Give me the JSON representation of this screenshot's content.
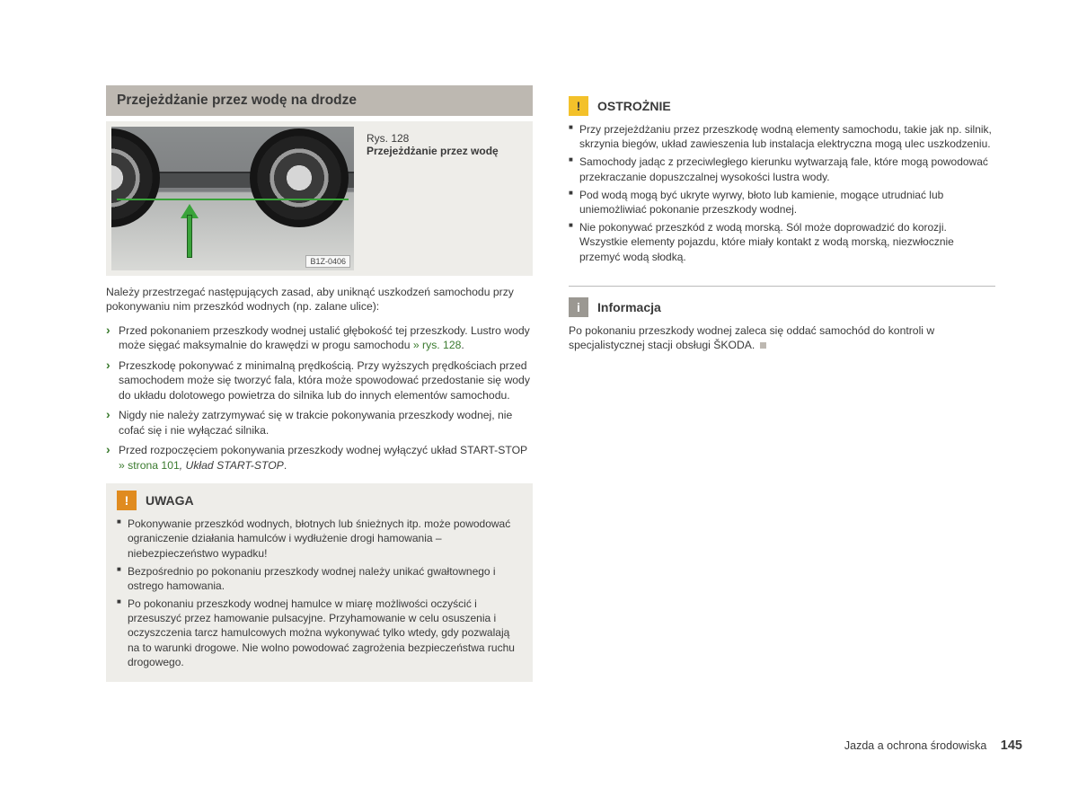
{
  "section": {
    "title": "Przejeżdżanie przez wodę na drodze"
  },
  "figure": {
    "number": "Rys. 128",
    "title": "Przejeżdżanie przez wodę",
    "image_code": "B1Z-0406",
    "colors": {
      "arrow": "#3aa33a",
      "waterline": "#3aa33a"
    }
  },
  "intro": "Należy przestrzegać następujących zasad, aby uniknąć uszkodzeń samochodu przy pokonywaniu nim przeszkód wodnych (np. zalane ulice):",
  "steps": [
    {
      "text": "Przed pokonaniem przeszkody wodnej ustalić głębokość tej przeszkody. Lustro wody może sięgać maksymalnie do krawędzi w progu samochodu ",
      "link": "» rys. 128",
      "suffix": "."
    },
    {
      "text": "Przeszkodę pokonywać z minimalną prędkością. Przy wyższych prędkościach przed samochodem może się tworzyć fala, która może spowodować przedostanie się wody do układu dolotowego powietrza do silnika lub do innych elementów samochodu."
    },
    {
      "text": "Nigdy nie należy zatrzymywać się w trakcie pokonywania przeszkody wodnej, nie cofać się i nie wyłączać silnika."
    },
    {
      "text": "Przed rozpoczęciem pokonywania przeszkody wodnej wyłączyć układ START-STOP ",
      "link": "» strona 101",
      "italic_suffix": ", Układ START-STOP",
      "suffix": "."
    }
  ],
  "uwaga": {
    "title": "UWAGA",
    "items": [
      "Pokonywanie przeszkód wodnych, błotnych lub śnieżnych itp. może powodować ograniczenie działania hamulców i wydłużenie drogi hamowania – niebezpieczeństwo wypadku!",
      "Bezpośrednio po pokonaniu przeszkody wodnej należy unikać gwałtownego i ostrego hamowania.",
      "Po pokonaniu przeszkody wodnej hamulce w miarę możliwości oczyścić i przesuszyć przez hamowanie pulsacyjne. Przyhamowanie w celu osuszenia i oczyszczenia tarcz hamulcowych można wykonywać tylko wtedy, gdy pozwalają na to warunki drogowe. Nie wolno powodować zagrożenia bezpieczeństwa ruchu drogowego."
    ]
  },
  "ostroznie": {
    "title": "OSTROŻNIE",
    "items": [
      "Przy przejeżdżaniu przez przeszkodę wodną elementy samochodu, takie jak np. silnik, skrzynia biegów, układ zawieszenia lub instalacja elektryczna mogą ulec uszkodzeniu.",
      "Samochody jadąc z przeciwległego kierunku wytwarzają fale, które mogą powodować przekraczanie dopuszczalnej wysokości lustra wody.",
      "Pod wodą mogą być ukryte wyrwy, błoto lub kamienie, mogące utrudniać lub uniemożliwiać pokonanie przeszkody wodnej.",
      "Nie pokonywać przeszkód z wodą morską. Sól może doprowadzić do korozji. Wszystkie elementy pojazdu, które miały kontakt z wodą morską, niezwłocznie przemyć wodą słodką."
    ]
  },
  "informacja": {
    "title": "Informacja",
    "text": "Po pokonaniu przeszkody wodnej zaleca się oddać samochód do kontroli w specjalistycznej stacji obsługi ŠKODA."
  },
  "footer": {
    "chapter": "Jazda a ochrona środowiska",
    "page": "145"
  }
}
